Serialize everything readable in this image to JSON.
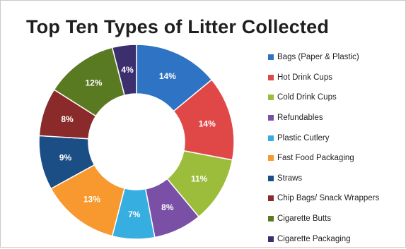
{
  "chart_data": {
    "type": "pie",
    "title": "Top Ten Types of Litter Collected",
    "categories": [
      "Bags (Paper & Plastic)",
      "Hot Drink Cups",
      "Cold Drink Cups",
      "Refundables",
      "Plastic Cutlery",
      "Fast Food Packaging",
      "Straws",
      "Chip Bags/ Snack Wrappers",
      "Cigarette Butts",
      "Cigarette Packaging"
    ],
    "values": [
      14,
      14,
      11,
      8,
      7,
      13,
      9,
      8,
      12,
      4
    ],
    "value_labels": [
      "14%",
      "14%",
      "11%",
      "8%",
      "7%",
      "13%",
      "9%",
      "8%",
      "12%",
      "4%"
    ],
    "colors": [
      "#2f74c4",
      "#e04848",
      "#9cbd3c",
      "#7a4fa6",
      "#36aee0",
      "#f7992e",
      "#1c4e86",
      "#8a2a2a",
      "#5a7a22",
      "#3c2f6e"
    ],
    "donut": true,
    "legend_position": "right"
  }
}
